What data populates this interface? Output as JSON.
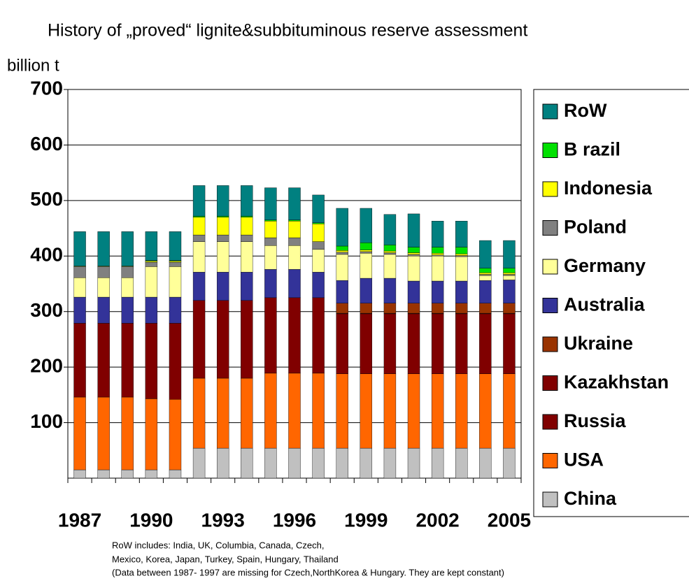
{
  "chart_data": {
    "type": "stacked_bar",
    "title": "History of „proved“ lignite&subbituminous reserve assessment",
    "y_axis_label": "billion t",
    "categories": [
      "1987",
      null,
      null,
      "1990",
      null,
      null,
      "1993",
      null,
      null,
      "1996",
      null,
      null,
      "1999",
      null,
      null,
      "2002",
      null,
      null,
      "2005"
    ],
    "ylim": [
      0,
      700
    ],
    "yticks": [
      100,
      200,
      300,
      400,
      500,
      600,
      700
    ],
    "grid": true,
    "legend": "right",
    "series": [
      {
        "name": "China",
        "color": "#c0c0c0",
        "values": [
          15,
          15,
          15,
          15,
          15,
          54,
          54,
          54,
          54,
          54,
          54,
          54,
          54,
          54,
          54,
          54,
          54,
          54,
          54
        ]
      },
      {
        "name": "USA",
        "color": "#ff6600",
        "values": [
          131,
          131,
          131,
          128,
          127,
          126,
          126,
          126,
          135,
          135,
          135,
          134,
          134,
          134,
          134,
          134,
          134,
          134,
          134
        ]
      },
      {
        "name": "Russia",
        "color": "#800000",
        "values": [
          133,
          133,
          133,
          136,
          137,
          140,
          140,
          140,
          136,
          136,
          136,
          108,
          108,
          108,
          108,
          108,
          108,
          108,
          108
        ]
      },
      {
        "name": "Kazakhstan",
        "color": "#800000",
        "values": [
          0,
          0,
          0,
          0,
          0,
          0,
          0,
          0,
          0,
          0,
          0,
          1,
          1,
          1,
          1,
          1,
          1,
          1,
          1
        ]
      },
      {
        "name": "Ukraine",
        "color": "#993300",
        "values": [
          0,
          0,
          0,
          0,
          0,
          0,
          0,
          0,
          0,
          0,
          0,
          18,
          18,
          18,
          18,
          18,
          18,
          18,
          18
        ]
      },
      {
        "name": "Australia",
        "color": "#333399",
        "values": [
          47,
          47,
          47,
          47,
          47,
          51,
          51,
          51,
          51,
          51,
          46,
          41,
          45,
          45,
          40,
          40,
          40,
          41,
          42
        ]
      },
      {
        "name": "Germany",
        "color": "#ffff99",
        "values": [
          35,
          35,
          35,
          55,
          55,
          55,
          55,
          55,
          43,
          43,
          41,
          47,
          45,
          43,
          45,
          45,
          44,
          9,
          8
        ]
      },
      {
        "name": "Poland",
        "color": "#808080",
        "values": [
          20,
          20,
          20,
          8,
          8,
          12,
          12,
          12,
          14,
          14,
          14,
          4,
          3,
          3,
          3,
          2,
          2,
          2,
          2
        ]
      },
      {
        "name": "Indonesia",
        "color": "#ffff00",
        "values": [
          1,
          1,
          1,
          2,
          2,
          32,
          32,
          32,
          30,
          30,
          32,
          3,
          3,
          3,
          3,
          3,
          3,
          3,
          3
        ]
      },
      {
        "name": "B razil",
        "color": "#00e000",
        "values": [
          0,
          0,
          0,
          1,
          1,
          2,
          2,
          2,
          2,
          2,
          2,
          8,
          13,
          11,
          10,
          11,
          12,
          8,
          8
        ]
      },
      {
        "name": "RoW",
        "color": "#008080",
        "values": [
          62,
          62,
          62,
          52,
          52,
          55,
          55,
          55,
          58,
          58,
          50,
          68,
          62,
          55,
          60,
          47,
          47,
          50,
          50
        ]
      }
    ],
    "notes": [
      "RoW includes: India, UK, Columbia, Canada, Czech,",
      "Mexico, Korea, Japan, Turkey, Spain, Hungary, Thailand",
      "(Data between 1987- 1997 are missing for Czech,NorthKorea & Hungary. They are kept constant)"
    ]
  }
}
